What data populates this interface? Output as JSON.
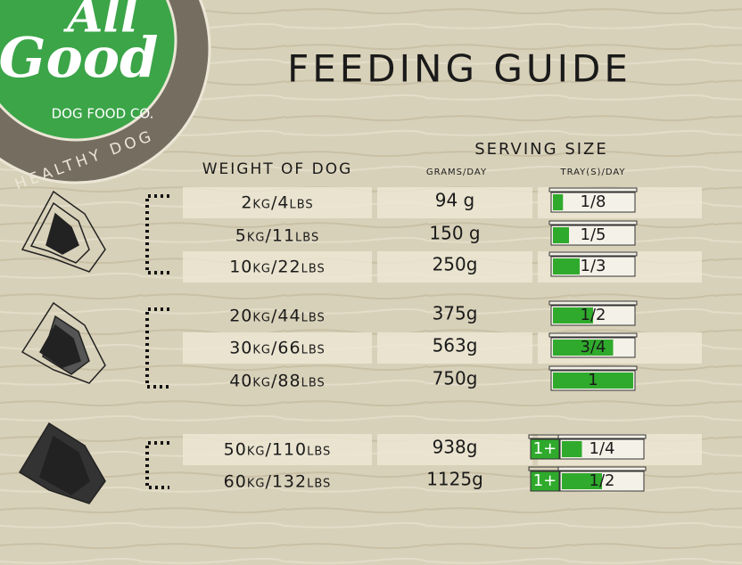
{
  "logo": {
    "name_line1": "All",
    "name_line2": "Good",
    "company": "DOG FOOD CO.",
    "tagline": "HEALTHY DOG"
  },
  "title": "FEEDING GUIDE",
  "headers": {
    "weight": "WEIGHT OF DOG",
    "serving": "SERVING SIZE",
    "grams": "GRAMS/DAY",
    "trays": "TRAY(S)/DAY"
  },
  "groups": [
    {
      "rows": [
        {
          "weight": "2kg/4lbs",
          "grams": "94 g",
          "tray": {
            "value": 0.125,
            "label": "1/8"
          }
        },
        {
          "weight": "5kg/11lbs",
          "grams": "150 g",
          "tray": {
            "value": 0.2,
            "label": "1/5"
          }
        },
        {
          "weight": "10kg/22lbs",
          "grams": "250g",
          "tray": {
            "value": 0.3333,
            "label": "1/3"
          }
        }
      ]
    },
    {
      "rows": [
        {
          "weight": "20kg/44lbs",
          "grams": "375g",
          "tray": {
            "value": 0.5,
            "label": "1/2"
          }
        },
        {
          "weight": "30kg/66lbs",
          "grams": "563g",
          "tray": {
            "value": 0.75,
            "label": "3/4"
          }
        },
        {
          "weight": "40kg/88lbs",
          "grams": "750g",
          "tray": {
            "value": 1,
            "label": "1"
          }
        }
      ]
    },
    {
      "rows": [
        {
          "weight": "50kg/110lbs",
          "grams": "938g",
          "extra": "1+",
          "tray": {
            "value": 0.25,
            "label": "1/4"
          }
        },
        {
          "weight": "60kg/132lbs",
          "grams": "1125g",
          "extra": "1+",
          "tray": {
            "value": 0.5,
            "label": "1/2"
          }
        }
      ]
    }
  ]
}
